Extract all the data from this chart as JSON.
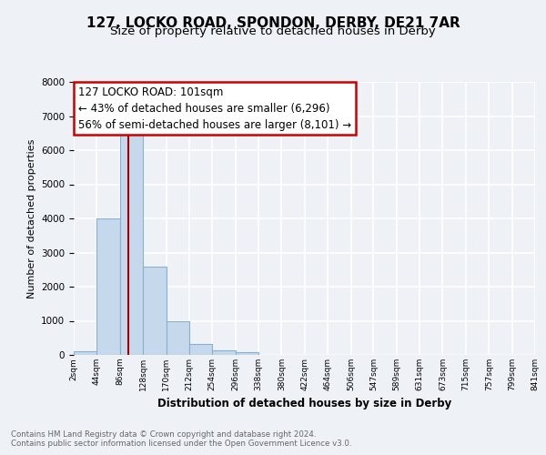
{
  "title_main": "127, LOCKO ROAD, SPONDON, DERBY, DE21 7AR",
  "title_sub": "Size of property relative to detached houses in Derby",
  "xlabel": "Distribution of detached houses by size in Derby",
  "ylabel": "Number of detached properties",
  "bin_edges": [
    2,
    44,
    86,
    128,
    170,
    212,
    254,
    296,
    338,
    380,
    422,
    464,
    506,
    547,
    589,
    631,
    673,
    715,
    757,
    799,
    841
  ],
  "bar_heights": [
    100,
    4000,
    6550,
    2600,
    975,
    320,
    130,
    70,
    0,
    0,
    0,
    0,
    0,
    0,
    0,
    0,
    0,
    0,
    0,
    0
  ],
  "bar_color": "#c6d9ec",
  "bar_edge_color": "#8ab0d0",
  "property_size": 101,
  "vline_color": "#aa0000",
  "ylim": [
    0,
    8000
  ],
  "yticks": [
    0,
    1000,
    2000,
    3000,
    4000,
    5000,
    6000,
    7000,
    8000
  ],
  "annotation_box_title": "127 LOCKO ROAD: 101sqm",
  "annotation_line1": "← 43% of detached houses are smaller (6,296)",
  "annotation_line2": "56% of semi-detached houses are larger (8,101) →",
  "footer_line1": "Contains HM Land Registry data © Crown copyright and database right 2024.",
  "footer_line2": "Contains public sector information licensed under the Open Government Licence v3.0.",
  "background_color": "#eef2f7",
  "plot_bg_color": "#eef2f7",
  "grid_color": "#ffffff",
  "title_fontsize": 11,
  "subtitle_fontsize": 9.5,
  "tick_labels": [
    "2sqm",
    "44sqm",
    "86sqm",
    "128sqm",
    "170sqm",
    "212sqm",
    "254sqm",
    "296sqm",
    "338sqm",
    "380sqm",
    "422sqm",
    "464sqm",
    "506sqm",
    "547sqm",
    "589sqm",
    "631sqm",
    "673sqm",
    "715sqm",
    "757sqm",
    "799sqm",
    "841sqm"
  ]
}
